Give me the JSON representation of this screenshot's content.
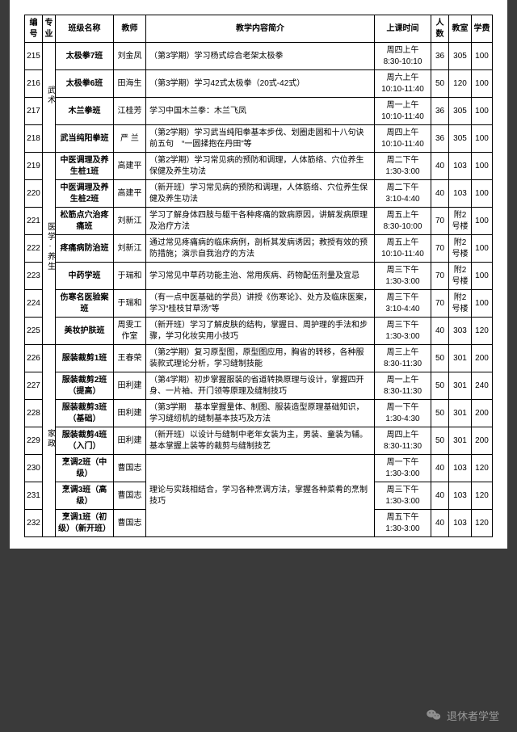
{
  "columns": [
    "编号",
    "专业",
    "班级名称",
    "教师",
    "教学内容简介",
    "上课时间",
    "人数",
    "教室",
    "学费"
  ],
  "majors": [
    {
      "label": "武术",
      "span": 4
    },
    {
      "label": "医学·养生",
      "span": 7
    },
    {
      "label": "家政",
      "span": 7
    }
  ],
  "rows": [
    {
      "id": "215",
      "name": "太极拳7班",
      "teacher": "刘金凤",
      "desc": "（第3学期）学习杨式综合老架太极拳",
      "time": "周四上午\n8:30-10:10",
      "count": "36",
      "room": "305",
      "fee": "100"
    },
    {
      "id": "216",
      "name": "太极拳6班",
      "teacher": "田海生",
      "desc": "（第3学期）学习42式太极拳（20式-42式）",
      "time": "周六上午\n10:10-11:40",
      "count": "50",
      "room": "120",
      "fee": "100"
    },
    {
      "id": "217",
      "name": "木兰拳班",
      "teacher": "江桂芳",
      "desc": "学习中国木兰拳：木兰飞凤",
      "time": "周一上午\n10:10-11:40",
      "count": "36",
      "room": "305",
      "fee": "100"
    },
    {
      "id": "218",
      "name": "武当纯阳拳班",
      "teacher": "严 兰",
      "desc": "（第2学期）学习武当纯阳拳基本步伐、划圈走圆和十八句诀前五句　“一圆揉抱在丹田”等",
      "time": "周四上午\n10:10-11:40",
      "count": "36",
      "room": "305",
      "fee": "100"
    },
    {
      "id": "219",
      "name": "中医调理及养生桩1班",
      "teacher": "高建平",
      "desc": "（第2学期）学习常见病的预防和调理，人体筋络、穴位养生保健及养生功法",
      "time": "周二下午\n1:30-3:00",
      "count": "40",
      "room": "103",
      "fee": "100"
    },
    {
      "id": "220",
      "name": "中医调理及养生桩2班",
      "teacher": "高建平",
      "desc": "（新开班）学习常见病的预防和调理，人体筋络、穴位养生保健及养生功法",
      "time": "周二下午\n3:10-4:40",
      "count": "40",
      "room": "103",
      "fee": "100"
    },
    {
      "id": "221",
      "name": "松筋点穴治疼痛班",
      "teacher": "刘新江",
      "desc": "学习了解身体四肢与躯干各种疼痛的致病原因，讲解发病原理及治疗方法",
      "time": "周五上午\n8:30-10:00",
      "count": "70",
      "room": "附2号楼",
      "fee": "100"
    },
    {
      "id": "222",
      "name": "疼痛病防治班",
      "teacher": "刘新江",
      "desc": "通过常见疼痛病的临床病例，剖析其发病诱因；教授有效的预防措施；演示自我治疗的方法",
      "time": "周五上午\n10:10-11:40",
      "count": "70",
      "room": "附2号楼",
      "fee": "100"
    },
    {
      "id": "223",
      "name": "中药学班",
      "teacher": "于瑞和",
      "desc": "学习常见中草药功能主治、常用疾病、药物配伍剂量及宜忌",
      "time": "周三下午\n1:30-3:00",
      "count": "70",
      "room": "附2号楼",
      "fee": "100"
    },
    {
      "id": "224",
      "name": "伤寒名医验案班",
      "teacher": "于瑞和",
      "desc": "（有一点中医基础的学员）讲授《伤寒论》、处方及临床医案，　学习“桂枝甘草汤”等",
      "time": "周三下午\n3:10-4:40",
      "count": "70",
      "room": "附2号楼",
      "fee": "100"
    },
    {
      "id": "225",
      "name": "美妆护肤班",
      "teacher": "周雯工作室",
      "desc": "（新开班）学习了解皮肤的结构，掌握日、周护理的手法和步骤，学习化妆实用小技巧",
      "time": "周三下午\n1:30-3:00",
      "count": "40",
      "room": "303",
      "fee": "120"
    },
    {
      "id": "226",
      "name": "服装裁剪1班",
      "teacher": "王春荣",
      "desc": "（第2学期）复习原型图，原型图应用，胸省的转移，各种服装款式理论分析，学习缝制技能",
      "time": "周三上午\n8:30-11:30",
      "count": "50",
      "room": "301",
      "fee": "200"
    },
    {
      "id": "227",
      "name": "服装裁剪2班（提高）",
      "teacher": "田利建",
      "desc": "（第4学期）初步掌握服装的省道转换原理与设计，掌握四开身、一片袖、开门领等原理及缝制技巧",
      "time": "周一上午\n8:30-11:30",
      "count": "50",
      "room": "301",
      "fee": "240"
    },
    {
      "id": "228",
      "name": "服装裁剪3班（基础）",
      "teacher": "田利建",
      "desc": "（第3学期　基本掌握量体、制图、服装造型原理基础知识，学习缝纫机的缝制基本技巧及方法",
      "time": "周一下午\n1:30-4:30",
      "count": "50",
      "room": "301",
      "fee": "200"
    },
    {
      "id": "229",
      "name": "服装裁剪4班（入门）",
      "teacher": "田利建",
      "desc": "（新开班）以设计与缝制中老年女装为主，男装、童装为辅。基本掌握上装等的裁剪与缝制技艺",
      "time": "周四上午\n8:30-11:30",
      "count": "50",
      "room": "301",
      "fee": "200"
    },
    {
      "id": "230",
      "name": "烹调2班（中级）",
      "teacher": "曹国志",
      "desc": "",
      "time": "周一下午\n1:30-3:00",
      "count": "40",
      "room": "103",
      "fee": "120",
      "descSpan": 3,
      "descShared": "理论与实践相结合，学习各种烹调方法，掌握各种菜肴的烹制技巧"
    },
    {
      "id": "231",
      "name": "烹调3班（高级）",
      "teacher": "曹国志",
      "desc": "",
      "time": "周三下午\n1:30-3:00",
      "count": "40",
      "room": "103",
      "fee": "120",
      "noDesc": true
    },
    {
      "id": "232",
      "name": "烹调1班（初级）（新开班）",
      "teacher": "曹国志",
      "desc": "",
      "time": "周五下午\n1:30-3:00",
      "count": "40",
      "room": "103",
      "fee": "120",
      "noDesc": true
    }
  ],
  "footer": {
    "account": "退休者学堂"
  },
  "colors": {
    "page_bg": "#3a3a3a",
    "sheet_bg": "#ffffff",
    "border": "#000000",
    "footer_text": "#9a9a9a",
    "wx_icon": "#8f8f8f"
  }
}
